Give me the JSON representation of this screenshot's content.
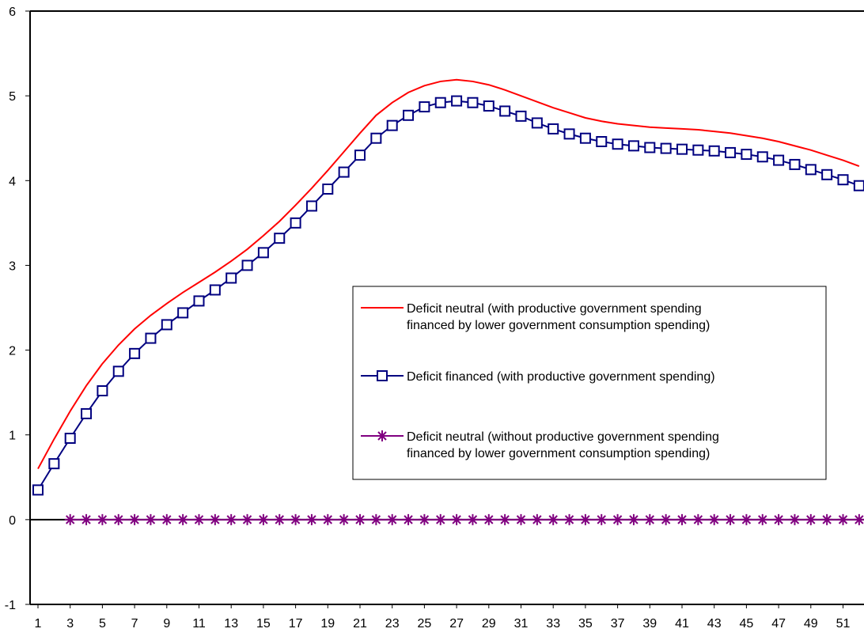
{
  "chart_data": {
    "type": "line",
    "title": "",
    "xlabel": "",
    "ylabel": "",
    "ylim": [
      -1,
      6
    ],
    "yticks": [
      -1,
      0,
      1,
      2,
      3,
      4,
      5,
      6
    ],
    "xlim": [
      1,
      52
    ],
    "xtick_labels": [
      1,
      3,
      5,
      7,
      9,
      11,
      13,
      15,
      17,
      19,
      21,
      23,
      25,
      27,
      29,
      31,
      33,
      35,
      37,
      39,
      41,
      43,
      45,
      47,
      49,
      51
    ],
    "grid": false,
    "legend_position": "center-right",
    "series": [
      {
        "name": "Deficit neutral (with productive government spending financed by lower government consumption spending)",
        "label_lines": [
          "Deficit neutral (with productive government spending",
          "financed by lower government consumption spending)"
        ],
        "color": "#ff0000",
        "marker": "none",
        "x": [
          1,
          2,
          3,
          4,
          5,
          6,
          7,
          8,
          9,
          10,
          11,
          12,
          13,
          14,
          15,
          16,
          17,
          18,
          19,
          20,
          21,
          22,
          23,
          24,
          25,
          26,
          27,
          28,
          29,
          30,
          31,
          32,
          33,
          34,
          35,
          36,
          37,
          38,
          39,
          40,
          41,
          42,
          43,
          44,
          45,
          46,
          47,
          48,
          49,
          50,
          51,
          52
        ],
        "values": [
          0.6,
          0.95,
          1.28,
          1.58,
          1.84,
          2.06,
          2.25,
          2.41,
          2.55,
          2.68,
          2.8,
          2.92,
          3.05,
          3.19,
          3.35,
          3.52,
          3.71,
          3.91,
          4.12,
          4.34,
          4.56,
          4.77,
          4.92,
          5.04,
          5.12,
          5.17,
          5.19,
          5.17,
          5.13,
          5.07,
          5.0,
          4.93,
          4.86,
          4.8,
          4.74,
          4.7,
          4.67,
          4.65,
          4.63,
          4.62,
          4.61,
          4.6,
          4.58,
          4.56,
          4.53,
          4.5,
          4.46,
          4.41,
          4.36,
          4.3,
          4.24,
          4.17
        ]
      },
      {
        "name": "Deficit financed (with productive government spending)",
        "label_lines": [
          "Deficit financed (with productive government spending)"
        ],
        "color": "#000080",
        "marker": "square",
        "x": [
          1,
          2,
          3,
          4,
          5,
          6,
          7,
          8,
          9,
          10,
          11,
          12,
          13,
          14,
          15,
          16,
          17,
          18,
          19,
          20,
          21,
          22,
          23,
          24,
          25,
          26,
          27,
          28,
          29,
          30,
          31,
          32,
          33,
          34,
          35,
          36,
          37,
          38,
          39,
          40,
          41,
          42,
          43,
          44,
          45,
          46,
          47,
          48,
          49,
          50,
          51,
          52
        ],
        "values": [
          0.35,
          0.66,
          0.96,
          1.25,
          1.52,
          1.75,
          1.96,
          2.14,
          2.3,
          2.44,
          2.58,
          2.71,
          2.85,
          3.0,
          3.15,
          3.32,
          3.5,
          3.7,
          3.9,
          4.1,
          4.3,
          4.5,
          4.65,
          4.77,
          4.87,
          4.92,
          4.94,
          4.92,
          4.88,
          4.82,
          4.76,
          4.68,
          4.61,
          4.55,
          4.5,
          4.46,
          4.43,
          4.41,
          4.39,
          4.38,
          4.37,
          4.36,
          4.35,
          4.33,
          4.31,
          4.28,
          4.24,
          4.19,
          4.13,
          4.07,
          4.01,
          3.94
        ]
      },
      {
        "name": "Deficit neutral (without productive government spending financed by lower government consumption spending)",
        "label_lines": [
          "Deficit neutral (without productive government spending",
          "financed by lower government consumption spending)"
        ],
        "color": "#800080",
        "marker": "asterisk",
        "x": [
          3,
          4,
          5,
          6,
          7,
          8,
          9,
          10,
          11,
          12,
          13,
          14,
          15,
          16,
          17,
          18,
          19,
          20,
          21,
          22,
          23,
          24,
          25,
          26,
          27,
          28,
          29,
          30,
          31,
          32,
          33,
          34,
          35,
          36,
          37,
          38,
          39,
          40,
          41,
          42,
          43,
          44,
          45,
          46,
          47,
          48,
          49,
          50,
          51,
          52
        ],
        "values": [
          0,
          0,
          0,
          0,
          0,
          0,
          0,
          0,
          0,
          0,
          0,
          0,
          0,
          0,
          0,
          0,
          0,
          0,
          0,
          0,
          0,
          0,
          0,
          0,
          0,
          0,
          0,
          0,
          0,
          0,
          0,
          0,
          0,
          0,
          0,
          0,
          0,
          0,
          0,
          0,
          0,
          0,
          0,
          0,
          0,
          0,
          0,
          0,
          0,
          0
        ]
      }
    ]
  }
}
